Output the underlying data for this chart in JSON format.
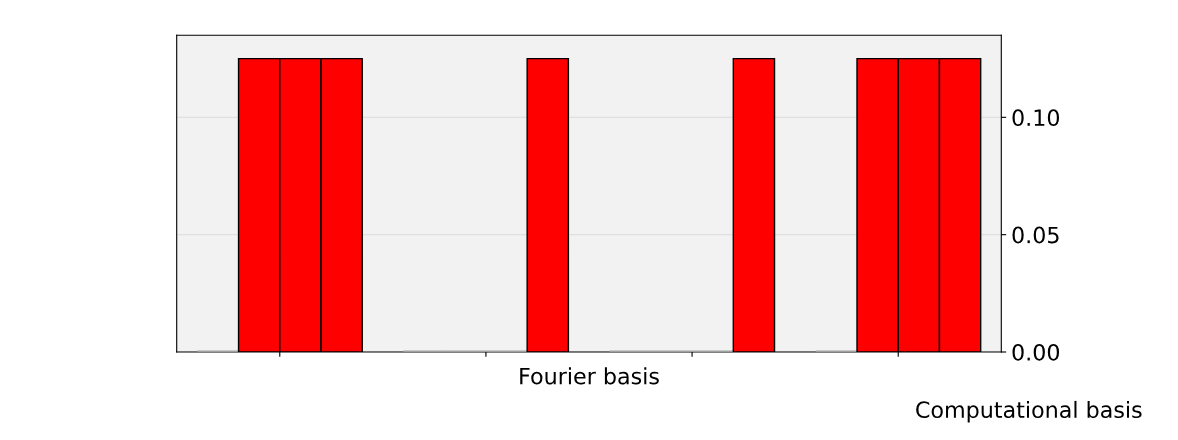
{
  "chart_data": {
    "type": "bar",
    "xlabel": "Fourier basis",
    "categories": [
      null,
      null,
      null,
      null
    ],
    "series": [
      {
        "colors": [
          "#a0a0a0",
          "#a0a0a0",
          "#a0a0a0",
          "#a0a0a0"
        ],
        "values": [
          0,
          0,
          0,
          0
        ]
      },
      {
        "colors": [
          "#ff0000",
          "#a0a0a0",
          "#a0a0a0",
          "#ff0000"
        ],
        "values": [
          0.125,
          0,
          0,
          0.125
        ]
      },
      {
        "colors": [
          "#ff0000",
          "#a0a0a0",
          "#a0a0a0",
          "#ff0000"
        ],
        "values": [
          0.125,
          0,
          0,
          0.125
        ]
      },
      {
        "color": "#ff0000",
        "values": [
          0.125,
          0.125,
          0.125,
          0.125
        ]
      }
    ],
    "ylim": [
      0,
      0.135
    ],
    "yticks": [
      {
        "value": 0,
        "label": "0.00"
      },
      {
        "value": 0.05,
        "label": "0.05"
      },
      {
        "value": 0.1,
        "label": "0.10"
      }
    ],
    "grid": "y",
    "annotations": [
      "Computational basis"
    ]
  }
}
